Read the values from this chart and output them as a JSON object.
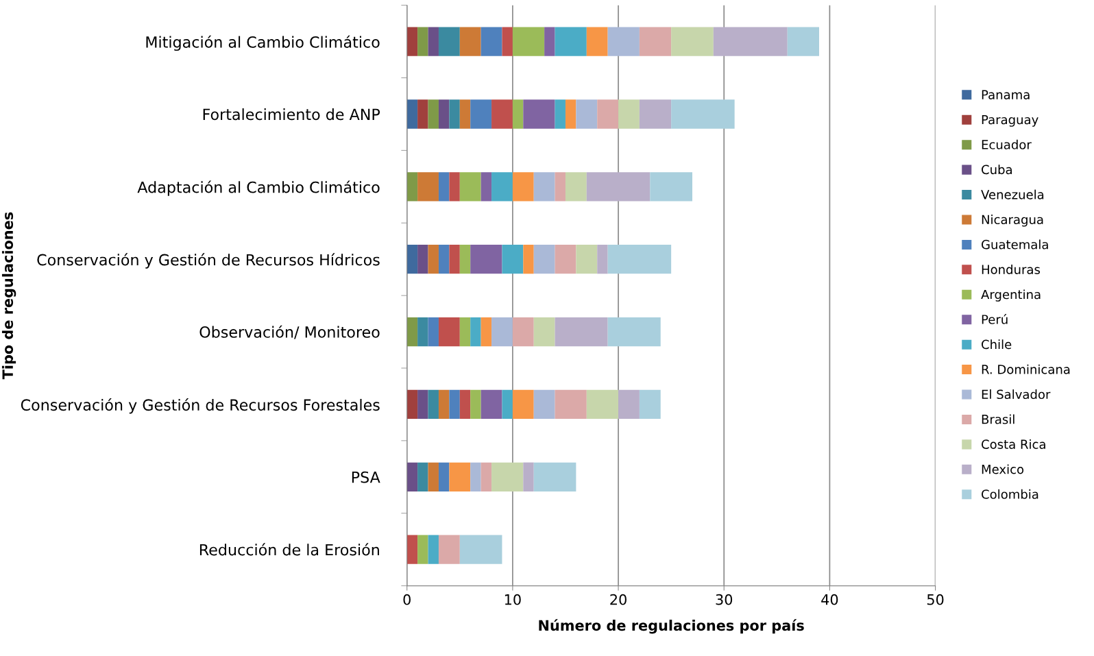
{
  "chart_data": {
    "type": "bar",
    "orientation": "horizontal",
    "stacked": true,
    "xlabel": "Número de regulaciones por país",
    "ylabel": "Tipo de regulaciones",
    "categories": [
      "Mitigación al Cambio Climático",
      "Fortalecimiento de ANP",
      "Adaptación al Cambio Climático",
      "Conservación y Gestión de Recursos Hídricos",
      "Observación/ Monitoreo",
      "Conservación y Gestión de Recursos Forestales",
      "PSA",
      "Reducción de la Erosión"
    ],
    "xlim": [
      0,
      50
    ],
    "xticks": [
      0,
      10,
      20,
      30,
      40,
      50
    ],
    "grid": "x",
    "legend": "right",
    "series": [
      {
        "name": "Panama",
        "color": "#3f6a9e",
        "values": [
          0,
          1,
          0,
          1,
          0,
          0,
          0,
          0
        ]
      },
      {
        "name": "Paraguay",
        "color": "#a0403d",
        "values": [
          1,
          1,
          0,
          0,
          0,
          1,
          0,
          0
        ]
      },
      {
        "name": "Ecuador",
        "color": "#7f9a48",
        "values": [
          1,
          1,
          1,
          0,
          1,
          0,
          0,
          0
        ]
      },
      {
        "name": "Cuba",
        "color": "#6a5088",
        "values": [
          1,
          1,
          0,
          1,
          0,
          1,
          1,
          0
        ]
      },
      {
        "name": "Venezuela",
        "color": "#3b8aa0",
        "values": [
          2,
          1,
          0,
          0,
          1,
          1,
          1,
          0
        ]
      },
      {
        "name": "Nicaragua",
        "color": "#cd7a36",
        "values": [
          2,
          1,
          2,
          1,
          0,
          1,
          1,
          0
        ]
      },
      {
        "name": "Guatemala",
        "color": "#4f81bd",
        "values": [
          2,
          2,
          1,
          1,
          1,
          1,
          1,
          0
        ]
      },
      {
        "name": "Honduras",
        "color": "#c0504d",
        "values": [
          1,
          2,
          1,
          1,
          2,
          1,
          0,
          1
        ]
      },
      {
        "name": "Argentina",
        "color": "#9bbb59",
        "values": [
          3,
          1,
          2,
          1,
          1,
          1,
          0,
          1
        ]
      },
      {
        "name": "Perú",
        "color": "#8064a2",
        "values": [
          1,
          3,
          1,
          3,
          0,
          2,
          0,
          0
        ]
      },
      {
        "name": "Chile",
        "color": "#4bacc6",
        "values": [
          3,
          1,
          2,
          2,
          1,
          1,
          0,
          1
        ]
      },
      {
        "name": "R. Dominicana",
        "color": "#f79646",
        "values": [
          2,
          1,
          2,
          1,
          1,
          2,
          2,
          0
        ]
      },
      {
        "name": "El Salvador",
        "color": "#aab9d7",
        "values": [
          3,
          2,
          2,
          2,
          2,
          2,
          1,
          0
        ]
      },
      {
        "name": "Brasil",
        "color": "#dba9a8",
        "values": [
          3,
          2,
          1,
          2,
          2,
          3,
          1,
          2
        ]
      },
      {
        "name": "Costa Rica",
        "color": "#c7d6ab",
        "values": [
          4,
          2,
          2,
          2,
          2,
          3,
          3,
          0
        ]
      },
      {
        "name": "Mexico",
        "color": "#b9afc9",
        "values": [
          7,
          3,
          6,
          1,
          5,
          2,
          1,
          0
        ]
      },
      {
        "name": "Colombia",
        "color": "#a9cfdd",
        "values": [
          3,
          6,
          4,
          6,
          5,
          2,
          4,
          4
        ]
      }
    ]
  }
}
